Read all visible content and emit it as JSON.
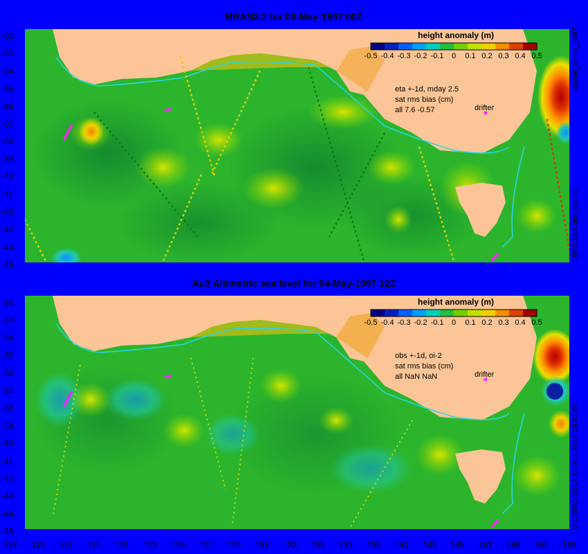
{
  "panels": [
    {
      "title": "BRAN3.2 for 03-May-1997 00Z",
      "legend_title": "height anomaly (m)",
      "annotation_lines": [
        "eta +-1d, mday 2.5",
        "sat rms bias (cm)",
        "all 7.6 -0.57"
      ],
      "drifter_label": "drifter",
      "side_label_top": "ocean_temp_1997",
      "side_label_bottom": "19970430.obs_eta.nc"
    },
    {
      "title": "Au3 Altimetric sea level  for 04-May-1997 12Z",
      "legend_title": "height anomaly (m)",
      "annotation_lines": [
        "obs +-1d, oi-2",
        "sat rms bias (cm)",
        "all NaN NaN"
      ],
      "drifter_label": "drifter",
      "side_label_bottom": "© CSIRO 2012   12-Apr-2012 18:01:00"
    }
  ],
  "legend_ticks": [
    "-0.5",
    "-0.4",
    "-0.3",
    "-0.2",
    "-0.1",
    "0",
    "0.1",
    "0.2",
    "0.3",
    "0.4",
    "0.5"
  ],
  "y_ticks": [
    "-32",
    "-33",
    "-34",
    "-35",
    "-36",
    "-37",
    "-38",
    "-39",
    "-40",
    "-41",
    "-42",
    "-43",
    "-44",
    "-45"
  ],
  "x_ticks": [
    "113",
    "115",
    "117",
    "119",
    "121",
    "123",
    "125",
    "127",
    "129",
    "131",
    "133",
    "135",
    "137",
    "139",
    "141",
    "143",
    "145",
    "147",
    "149",
    "151",
    "153"
  ],
  "colors": {
    "background": "#0000ff",
    "land": "#fbc597",
    "ocean_base": "#22b022",
    "coastline_contour": "#22d8e8",
    "drifter": "#ff22ff"
  }
}
